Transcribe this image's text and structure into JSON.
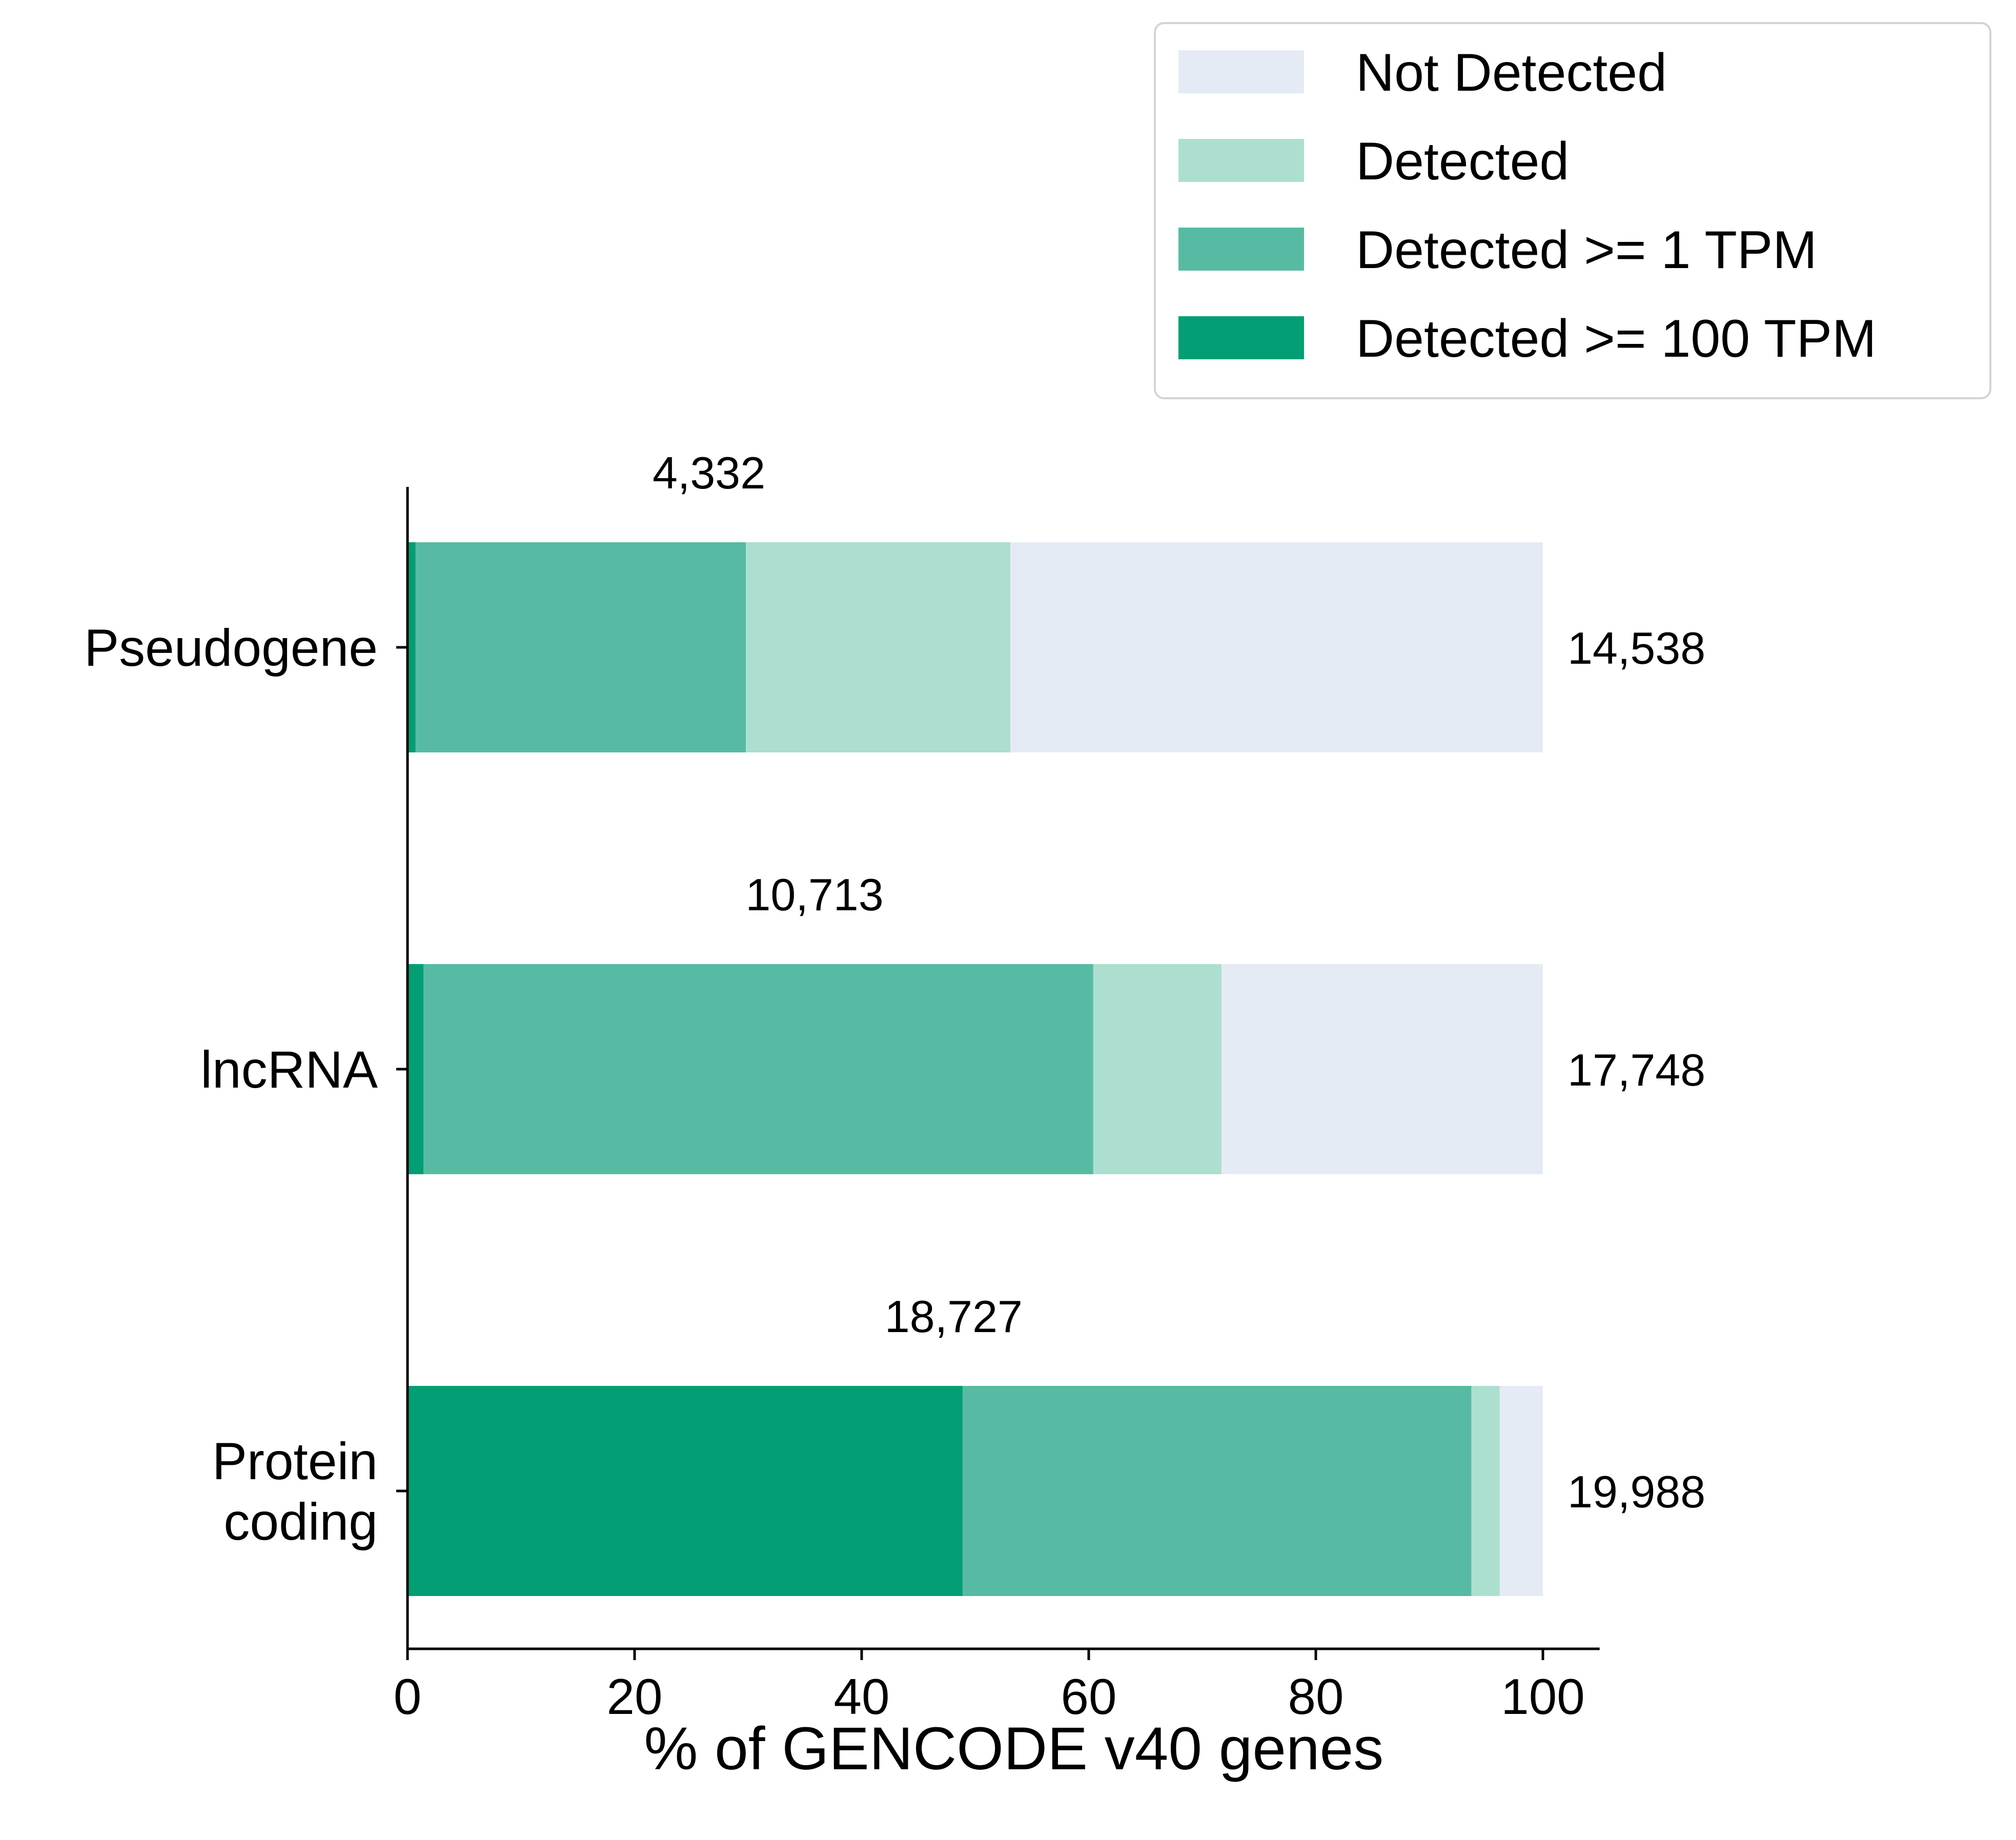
{
  "chart_data": {
    "type": "bar",
    "orientation": "horizontal",
    "stacked": true,
    "xlabel": "% of GENCODE v40 genes",
    "ylabel": "",
    "xlim": [
      0,
      105
    ],
    "xticks": [
      0,
      20,
      40,
      60,
      80,
      100
    ],
    "grid": false,
    "legend_position": "top-right",
    "categories": [
      {
        "label_lines": [
          "Pseudogene"
        ],
        "total": "14,538",
        "detected_count": "4,332"
      },
      {
        "label_lines": [
          "lncRNA"
        ],
        "total": "17,748",
        "detected_count": "10,713"
      },
      {
        "label_lines": [
          "Protein",
          "coding"
        ],
        "total": "19,988",
        "detected_count": "18,727"
      }
    ],
    "series": [
      {
        "name": "Detected >= 100 TPM",
        "color": "#049e74",
        "values": [
          0.7,
          1.4,
          48.9
        ]
      },
      {
        "name": "Detected >= 1 TPM",
        "color": "#57bba3",
        "values": [
          29.1,
          59.0,
          44.8
        ]
      },
      {
        "name": "Detected",
        "color": "#acdfcf",
        "values": [
          23.3,
          11.3,
          2.5
        ]
      },
      {
        "name": "Not Detected",
        "color": "#e5ebf5",
        "values": [
          46.9,
          28.3,
          3.8
        ]
      }
    ],
    "legend": [
      {
        "name": "Not Detected",
        "color": "#e5ebf5"
      },
      {
        "name": "Detected",
        "color": "#acdfcf"
      },
      {
        "name": "Detected >= 1 TPM",
        "color": "#57bba3"
      },
      {
        "name": "Detected >= 100 TPM",
        "color": "#049e74"
      }
    ]
  }
}
